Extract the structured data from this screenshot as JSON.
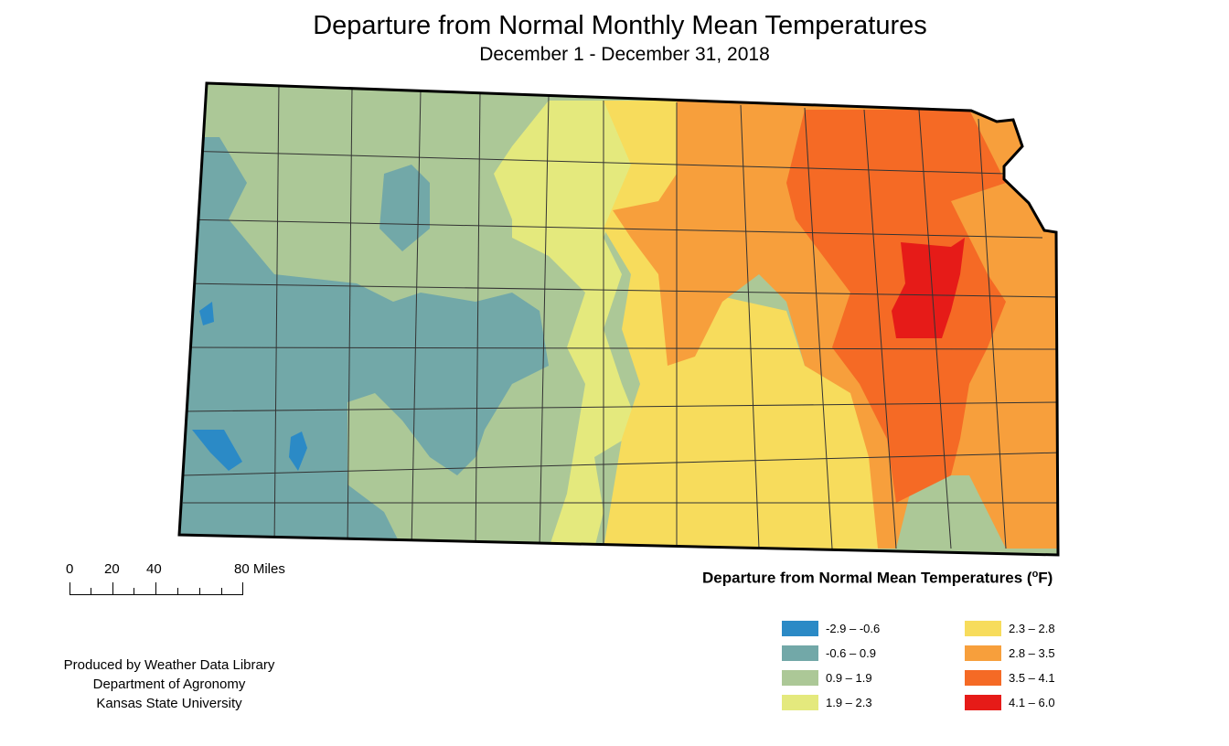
{
  "title": "Departure from Normal Monthly Mean Temperatures",
  "subtitle": "December 1 - December 31, 2018",
  "scale_bar": {
    "labels": [
      "0",
      "20",
      "40",
      "80 Miles"
    ]
  },
  "legend": {
    "title": "Departure from Normal Mean Temperatures (",
    "title_unit_sup": "o",
    "title_unit_tail": "F)",
    "classes": [
      {
        "label": "-2.9 – -0.6",
        "color": "#2b8ac6"
      },
      {
        "label": "-0.6 – 0.9",
        "color": "#72a8a8"
      },
      {
        "label": "0.9 – 1.9",
        "color": "#acc897"
      },
      {
        "label": "1.9 – 2.3",
        "color": "#e4e97d"
      },
      {
        "label": "2.3 – 2.8",
        "color": "#f7dc5c"
      },
      {
        "label": "2.8 – 3.5",
        "color": "#f79f3c"
      },
      {
        "label": "3.5 – 4.1",
        "color": "#f56a25"
      },
      {
        "label": "4.1 – 6.0",
        "color": "#e61b18"
      }
    ]
  },
  "credits": {
    "line1": "Produced by Weather Data Library",
    "line2": "Department of Agronomy",
    "line3": "Kansas State University"
  },
  "map": {
    "state": "Kansas",
    "region_classes_west_to_east": [
      "-0.6 – 0.9",
      "0.9 – 1.9",
      "1.9 – 2.3",
      "2.3 – 2.8",
      "2.8 – 3.5",
      "3.5 – 4.1",
      "4.1 – 6.0"
    ]
  }
}
